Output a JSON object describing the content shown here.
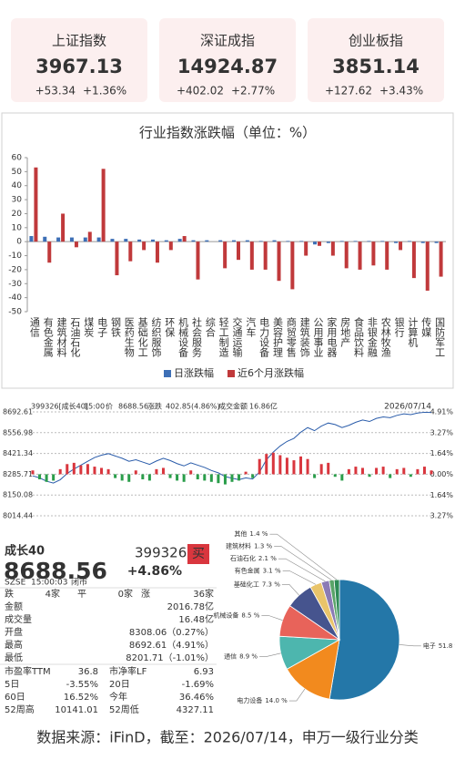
{
  "indices": [
    {
      "name": "上证指数",
      "value": "3967.13",
      "change": "+53.34",
      "pct": "+1.36%"
    },
    {
      "name": "深证成指",
      "value": "14924.87",
      "change": "+402.02",
      "pct": "+2.77%"
    },
    {
      "name": "创业板指",
      "value": "3851.14",
      "change": "+127.62",
      "pct": "+3.43%"
    }
  ],
  "chart_data": [
    {
      "type": "bar",
      "title": "行业指数涨跌幅（单位：%）",
      "categories": [
        "通信",
        "有色金属",
        "建筑材料",
        "石油石化",
        "煤炭",
        "电子",
        "钢铁",
        "医药生物",
        "基础化工",
        "纺织服饰",
        "环保",
        "机械设备",
        "社会服务",
        "综合",
        "轻工制造",
        "交通运输",
        "汽车",
        "电力设备",
        "美容护理",
        "商贸零售",
        "建筑装饰",
        "公用事业",
        "家用电器",
        "房地产",
        "食品饮料",
        "非银金融",
        "农林牧渔",
        "银行",
        "计算机",
        "传媒",
        "国防军工"
      ],
      "series": [
        {
          "name": "日涨跌幅",
          "color": "#3d6fb6",
          "values": [
            4,
            3.5,
            3,
            3,
            3,
            3,
            2,
            2,
            1.5,
            1.5,
            1,
            2,
            1,
            1,
            1,
            1,
            1,
            0.5,
            1,
            0.5,
            0.5,
            -2,
            -1,
            0.5,
            0.5,
            0.5,
            0.5,
            -1,
            0.5,
            -1,
            -1
          ]
        },
        {
          "name": "近6个月涨跌幅",
          "color": "#c0393b",
          "values": [
            53,
            -15,
            20,
            -4,
            7,
            52,
            -24,
            -14,
            -6,
            -15,
            -6,
            4,
            -27,
            0,
            -19,
            -13,
            -20,
            -20,
            -28,
            -34,
            -10,
            -3,
            -10,
            -19,
            -20,
            -17,
            -20,
            -6,
            -26,
            -35,
            -25
          ]
        }
      ],
      "ylim": [
        -50,
        60
      ],
      "yticks": [
        -50,
        -40,
        -30,
        -20,
        -10,
        0,
        10,
        20,
        30,
        40,
        50,
        60
      ],
      "grid": false,
      "legend": "bottom"
    },
    {
      "type": "line",
      "code": "399326[成长40]",
      "time": "15:00",
      "price_label": "价",
      "price": "8688.56",
      "change_label": "涨跌",
      "change": "402.85(4.86%)",
      "amount_label": "成交金额",
      "amount": "16.86亿",
      "date": "2026/07/14",
      "series": [
        {
          "color": "#2a5caa",
          "values": [
            8275,
            8262,
            8240,
            8228,
            8250,
            8290,
            8320,
            8345,
            8370,
            8395,
            8410,
            8420,
            8405,
            8390,
            8370,
            8380,
            8365,
            8350,
            8372,
            8390,
            8375,
            8355,
            8340,
            8360,
            8345,
            8330,
            8310,
            8295,
            8270,
            8260,
            8250,
            8262,
            8255,
            8300,
            8380,
            8430,
            8470,
            8500,
            8520,
            8560,
            8590,
            8570,
            8600,
            8620,
            8610,
            8590,
            8605,
            8625,
            8640,
            8630,
            8650,
            8660,
            8655,
            8670,
            8680,
            8675,
            8685,
            8690,
            8688.56
          ]
        },
        {
          "axis": "y2",
          "color": "#d9363e",
          "negative_color": "#2a9d4a",
          "values": [
            0.3,
            -0.4,
            -0.6,
            -0.5,
            0.4,
            0.8,
            0.9,
            0.7,
            0.8,
            0.6,
            0.5,
            0.4,
            -0.3,
            -0.5,
            -0.6,
            0.3,
            -0.4,
            -0.5,
            0.4,
            0.5,
            -0.3,
            -0.5,
            -0.6,
            0.3,
            -0.4,
            -0.5,
            -0.6,
            -0.7,
            -0.8,
            -0.6,
            -0.5,
            0.2,
            -0.3,
            1.2,
            1.6,
            1.7,
            1.5,
            1.3,
            1.1,
            1.4,
            1.2,
            -0.3,
            0.8,
            0.9,
            -0.2,
            -0.5,
            0.4,
            0.6,
            0.5,
            -0.2,
            0.5,
            0.6,
            -0.3,
            0.4,
            0.5,
            -0.2,
            0.4,
            0.6,
            0.3
          ]
        }
      ],
      "ylim": [
        8014.44,
        8692.61
      ],
      "yticks": [
        8014.44,
        8150.08,
        8285.71,
        8421.34,
        8556.98,
        8692.61
      ],
      "y2lim": [
        -3.27,
        4.91
      ],
      "y2ticks": [
        {
          "value": -3.27,
          "label": "3.27%"
        },
        {
          "value": -1.64,
          "label": "1.64%"
        },
        {
          "value": 0,
          "label": "0.00%"
        },
        {
          "value": 1.64,
          "label": "1.64%"
        },
        {
          "value": 3.27,
          "label": "3.27%"
        },
        {
          "value": 4.91,
          "label": "4.91%"
        }
      ],
      "grid": true
    },
    {
      "type": "pie",
      "categories": [
        "电子",
        "电力设备",
        "通信",
        "机械设备",
        "基础化工",
        "有色金属",
        "石油石化",
        "建筑材料",
        "其他"
      ],
      "values": [
        51.8,
        14.0,
        8.9,
        8.5,
        7.3,
        3.1,
        2.1,
        1.3,
        1.4
      ],
      "value_labels": [
        "51.8 %",
        "14.0 %",
        "8.9 %",
        "8.5 %",
        "7.3 %",
        "3.1 %",
        "2.1 %",
        "1.3 %",
        "1.4 %"
      ],
      "colors": [
        "#2477a8",
        "#f28a1e",
        "#4db6ae",
        "#e8635a",
        "#46548e",
        "#e9c46a",
        "#8b7bb5",
        "#5aa469",
        "#2e8b57"
      ]
    }
  ],
  "quote": {
    "name": "成长40",
    "price": "8688.56",
    "code": "399326",
    "buy": "买",
    "change": "+4.86%",
    "exchange": "SZSE",
    "time": "15:00:03",
    "status": "闭市",
    "breadth": [
      [
        "跌",
        "4家"
      ],
      [
        "平",
        "0家"
      ],
      [
        "涨",
        "36家"
      ]
    ],
    "rows": [
      [
        "金额",
        "2016.78亿"
      ],
      [
        "成交量",
        "16.48亿"
      ],
      [
        "开盘",
        "8308.06（0.27%）"
      ],
      [
        "最高",
        "8692.61（4.91%）"
      ],
      [
        "最低",
        "8201.71（-1.01%）"
      ]
    ],
    "stats": [
      [
        "市盈率TTM",
        "36.8",
        "市净率LF",
        "6.93"
      ],
      [
        "5日",
        "-3.55%",
        "20日",
        "-1.69%"
      ],
      [
        "60日",
        "16.52%",
        "今年",
        "36.46%"
      ],
      [
        "52周高",
        "10141.01",
        "52周低",
        "4327.11"
      ]
    ]
  },
  "footer": "数据来源：iFinD，截至：2026/07/14，申万一级行业分类"
}
